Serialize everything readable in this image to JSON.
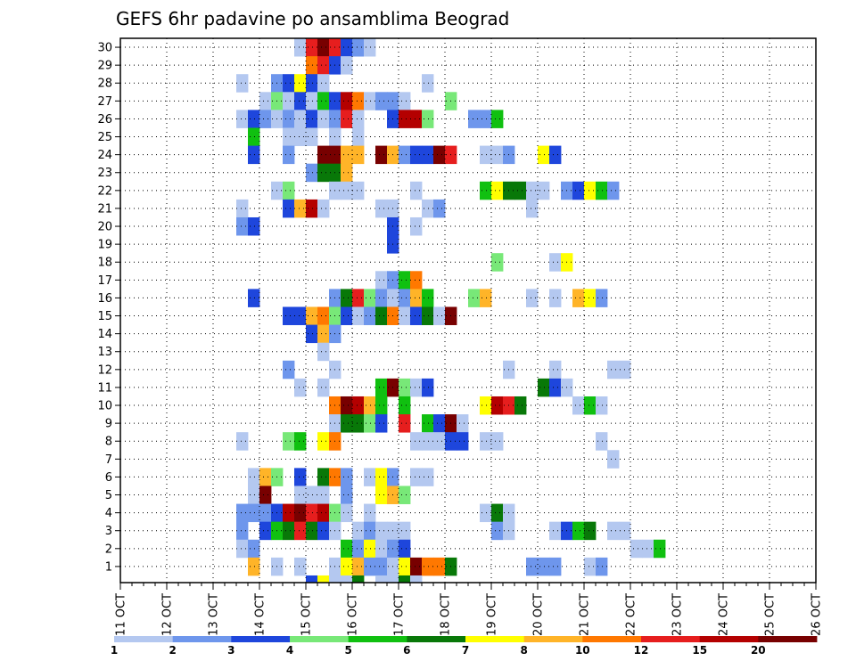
{
  "chart_data": {
    "type": "heatmap",
    "title": "GEFS 6hr padavine po ansamblima Beograd",
    "xlabel": "",
    "ylabel": "",
    "x_tick_labels": [
      "11 OCT",
      "12 OCT",
      "13 OCT",
      "14 OCT",
      "15 OCT",
      "16 OCT",
      "17 OCT",
      "18 OCT",
      "19 OCT",
      "20 OCT",
      "21 OCT",
      "22 OCT",
      "23 OCT",
      "24 OCT",
      "25 OCT",
      "26 OCT"
    ],
    "y_tick_labels": [
      "1",
      "2",
      "3",
      "4",
      "5",
      "6",
      "7",
      "8",
      "9",
      "10",
      "11",
      "12",
      "13",
      "14",
      "15",
      "16",
      "17",
      "18",
      "19",
      "20",
      "21",
      "22",
      "23",
      "24",
      "25",
      "26",
      "27",
      "28",
      "29",
      "30"
    ],
    "x_range_steps": [
      0,
      60
    ],
    "y_range": [
      0,
      30
    ],
    "grid": true,
    "legend_placement": "bottom",
    "legend_labels": [
      "1",
      "2",
      "3",
      "4",
      "5",
      "6",
      "7",
      "8",
      "10",
      "12",
      "15",
      "20"
    ],
    "legend_colors": [
      "#b4c8f0",
      "#6e96ec",
      "#1e46dc",
      "#78e878",
      "#10c010",
      "#087808",
      "#ffff00",
      "#ffb428",
      "#ff7800",
      "#e61e1e",
      "#b40000",
      "#780000"
    ],
    "cells": [
      [
        15,
        30,
        0
      ],
      [
        16,
        30,
        9
      ],
      [
        17,
        30,
        11
      ],
      [
        18,
        30,
        9
      ],
      [
        19,
        30,
        2
      ],
      [
        20,
        30,
        1
      ],
      [
        21,
        30,
        0
      ],
      [
        16,
        29,
        8
      ],
      [
        17,
        29,
        9
      ],
      [
        18,
        29,
        2
      ],
      [
        19,
        29,
        0
      ],
      [
        10,
        28,
        0
      ],
      [
        13,
        28,
        1
      ],
      [
        14,
        28,
        2
      ],
      [
        15,
        28,
        6
      ],
      [
        16,
        28,
        2
      ],
      [
        17,
        28,
        0
      ],
      [
        26,
        28,
        0
      ],
      [
        12,
        27,
        0
      ],
      [
        13,
        27,
        3
      ],
      [
        14,
        27,
        0
      ],
      [
        15,
        27,
        2
      ],
      [
        16,
        27,
        0
      ],
      [
        17,
        27,
        4
      ],
      [
        18,
        27,
        2
      ],
      [
        19,
        27,
        10
      ],
      [
        20,
        27,
        8
      ],
      [
        21,
        27,
        0
      ],
      [
        22,
        27,
        1
      ],
      [
        23,
        27,
        1
      ],
      [
        24,
        27,
        0
      ],
      [
        28,
        27,
        3
      ],
      [
        10,
        26,
        0
      ],
      [
        11,
        26,
        2
      ],
      [
        12,
        26,
        1
      ],
      [
        13,
        26,
        0
      ],
      [
        14,
        26,
        1
      ],
      [
        15,
        26,
        0
      ],
      [
        16,
        26,
        2
      ],
      [
        17,
        26,
        0
      ],
      [
        18,
        26,
        1
      ],
      [
        19,
        26,
        9
      ],
      [
        20,
        26,
        0
      ],
      [
        23,
        26,
        2
      ],
      [
        24,
        26,
        10
      ],
      [
        25,
        26,
        10
      ],
      [
        26,
        26,
        3
      ],
      [
        30,
        26,
        1
      ],
      [
        31,
        26,
        1
      ],
      [
        32,
        26,
        4
      ],
      [
        11,
        25,
        4
      ],
      [
        14,
        25,
        0
      ],
      [
        15,
        25,
        0
      ],
      [
        16,
        25,
        0
      ],
      [
        18,
        25,
        0
      ],
      [
        20,
        25,
        0
      ],
      [
        11,
        24,
        2
      ],
      [
        14,
        24,
        1
      ],
      [
        17,
        24,
        11
      ],
      [
        18,
        24,
        11
      ],
      [
        19,
        24,
        7
      ],
      [
        20,
        24,
        7
      ],
      [
        22,
        24,
        11
      ],
      [
        23,
        24,
        7
      ],
      [
        24,
        24,
        1
      ],
      [
        25,
        24,
        2
      ],
      [
        26,
        24,
        2
      ],
      [
        27,
        24,
        11
      ],
      [
        28,
        24,
        9
      ],
      [
        31,
        24,
        0
      ],
      [
        32,
        24,
        0
      ],
      [
        33,
        24,
        1
      ],
      [
        36,
        24,
        6
      ],
      [
        37,
        24,
        2
      ],
      [
        16,
        23,
        1
      ],
      [
        17,
        23,
        5
      ],
      [
        18,
        23,
        5
      ],
      [
        19,
        23,
        7
      ],
      [
        13,
        22,
        0
      ],
      [
        14,
        22,
        3
      ],
      [
        18,
        22,
        0
      ],
      [
        19,
        22,
        0
      ],
      [
        20,
        22,
        0
      ],
      [
        25,
        22,
        0
      ],
      [
        31,
        22,
        4
      ],
      [
        32,
        22,
        6
      ],
      [
        33,
        22,
        5
      ],
      [
        34,
        22,
        5
      ],
      [
        35,
        22,
        0
      ],
      [
        36,
        22,
        0
      ],
      [
        38,
        22,
        1
      ],
      [
        39,
        22,
        2
      ],
      [
        40,
        22,
        6
      ],
      [
        41,
        22,
        4
      ],
      [
        42,
        22,
        1
      ],
      [
        10,
        21,
        0
      ],
      [
        14,
        21,
        2
      ],
      [
        15,
        21,
        7
      ],
      [
        16,
        21,
        10
      ],
      [
        17,
        21,
        0
      ],
      [
        22,
        21,
        0
      ],
      [
        23,
        21,
        0
      ],
      [
        26,
        21,
        0
      ],
      [
        27,
        21,
        1
      ],
      [
        35,
        21,
        0
      ],
      [
        10,
        20,
        1
      ],
      [
        11,
        20,
        2
      ],
      [
        23,
        20,
        2
      ],
      [
        25,
        20,
        0
      ],
      [
        23,
        19,
        2
      ],
      [
        32,
        18,
        3
      ],
      [
        37,
        18,
        0
      ],
      [
        38,
        18,
        6
      ],
      [
        22,
        17,
        0
      ],
      [
        23,
        17,
        1
      ],
      [
        24,
        17,
        4
      ],
      [
        25,
        17,
        8
      ],
      [
        11,
        16,
        2
      ],
      [
        18,
        16,
        1
      ],
      [
        19,
        16,
        5
      ],
      [
        20,
        16,
        9
      ],
      [
        21,
        16,
        3
      ],
      [
        22,
        16,
        1
      ],
      [
        23,
        16,
        0
      ],
      [
        24,
        16,
        1
      ],
      [
        25,
        16,
        7
      ],
      [
        26,
        16,
        4
      ],
      [
        30,
        16,
        3
      ],
      [
        31,
        16,
        7
      ],
      [
        35,
        16,
        0
      ],
      [
        37,
        16,
        0
      ],
      [
        39,
        16,
        7
      ],
      [
        40,
        16,
        6
      ],
      [
        41,
        16,
        1
      ],
      [
        14,
        15,
        2
      ],
      [
        15,
        15,
        2
      ],
      [
        16,
        15,
        7
      ],
      [
        17,
        15,
        8
      ],
      [
        18,
        15,
        3
      ],
      [
        19,
        15,
        2
      ],
      [
        20,
        15,
        0
      ],
      [
        21,
        15,
        1
      ],
      [
        22,
        15,
        5
      ],
      [
        23,
        15,
        8
      ],
      [
        24,
        15,
        0
      ],
      [
        25,
        15,
        2
      ],
      [
        26,
        15,
        5
      ],
      [
        27,
        15,
        0
      ],
      [
        28,
        15,
        11
      ],
      [
        16,
        14,
        2
      ],
      [
        17,
        14,
        7
      ],
      [
        18,
        14,
        1
      ],
      [
        17,
        13,
        0
      ],
      [
        14,
        12,
        1
      ],
      [
        18,
        12,
        0
      ],
      [
        33,
        12,
        0
      ],
      [
        37,
        12,
        0
      ],
      [
        42,
        12,
        0
      ],
      [
        43,
        12,
        0
      ],
      [
        15,
        11,
        0
      ],
      [
        17,
        11,
        0
      ],
      [
        22,
        11,
        4
      ],
      [
        23,
        11,
        11
      ],
      [
        24,
        11,
        3
      ],
      [
        25,
        11,
        0
      ],
      [
        26,
        11,
        2
      ],
      [
        36,
        11,
        5
      ],
      [
        37,
        11,
        2
      ],
      [
        38,
        11,
        0
      ],
      [
        18,
        10,
        8
      ],
      [
        19,
        10,
        11
      ],
      [
        20,
        10,
        10
      ],
      [
        21,
        10,
        7
      ],
      [
        22,
        10,
        4
      ],
      [
        24,
        10,
        4
      ],
      [
        31,
        10,
        6
      ],
      [
        32,
        10,
        10
      ],
      [
        33,
        10,
        9
      ],
      [
        34,
        10,
        5
      ],
      [
        39,
        10,
        0
      ],
      [
        40,
        10,
        4
      ],
      [
        41,
        10,
        0
      ],
      [
        18,
        9,
        0
      ],
      [
        19,
        9,
        5
      ],
      [
        20,
        9,
        5
      ],
      [
        21,
        9,
        3
      ],
      [
        22,
        9,
        2
      ],
      [
        24,
        9,
        9
      ],
      [
        26,
        9,
        4
      ],
      [
        27,
        9,
        2
      ],
      [
        28,
        9,
        11
      ],
      [
        29,
        9,
        0
      ],
      [
        10,
        8,
        0
      ],
      [
        14,
        8,
        3
      ],
      [
        15,
        8,
        4
      ],
      [
        17,
        8,
        6
      ],
      [
        18,
        8,
        8
      ],
      [
        25,
        8,
        0
      ],
      [
        26,
        8,
        0
      ],
      [
        27,
        8,
        0
      ],
      [
        28,
        8,
        2
      ],
      [
        29,
        8,
        2
      ],
      [
        31,
        8,
        0
      ],
      [
        32,
        8,
        0
      ],
      [
        41,
        8,
        0
      ],
      [
        42,
        7,
        0
      ],
      [
        11,
        6,
        0
      ],
      [
        12,
        6,
        7
      ],
      [
        13,
        6,
        3
      ],
      [
        15,
        6,
        2
      ],
      [
        17,
        6,
        5
      ],
      [
        18,
        6,
        8
      ],
      [
        19,
        6,
        1
      ],
      [
        21,
        6,
        0
      ],
      [
        22,
        6,
        6
      ],
      [
        23,
        6,
        1
      ],
      [
        25,
        6,
        0
      ],
      [
        26,
        6,
        0
      ],
      [
        11,
        5,
        0
      ],
      [
        12,
        5,
        11
      ],
      [
        15,
        5,
        0
      ],
      [
        16,
        5,
        0
      ],
      [
        17,
        5,
        0
      ],
      [
        19,
        5,
        1
      ],
      [
        22,
        5,
        6
      ],
      [
        23,
        5,
        7
      ],
      [
        24,
        5,
        3
      ],
      [
        10,
        4,
        1
      ],
      [
        11,
        4,
        1
      ],
      [
        12,
        4,
        1
      ],
      [
        13,
        4,
        2
      ],
      [
        14,
        4,
        10
      ],
      [
        15,
        4,
        11
      ],
      [
        16,
        4,
        9
      ],
      [
        17,
        4,
        10
      ],
      [
        18,
        4,
        3
      ],
      [
        19,
        4,
        0
      ],
      [
        21,
        4,
        0
      ],
      [
        31,
        4,
        0
      ],
      [
        32,
        4,
        5
      ],
      [
        33,
        4,
        0
      ],
      [
        10,
        3,
        1
      ],
      [
        12,
        3,
        2
      ],
      [
        13,
        3,
        4
      ],
      [
        14,
        3,
        5
      ],
      [
        15,
        3,
        9
      ],
      [
        16,
        3,
        5
      ],
      [
        17,
        3,
        2
      ],
      [
        18,
        3,
        0
      ],
      [
        20,
        3,
        0
      ],
      [
        21,
        3,
        1
      ],
      [
        22,
        3,
        0
      ],
      [
        23,
        3,
        0
      ],
      [
        24,
        3,
        0
      ],
      [
        32,
        3,
        1
      ],
      [
        33,
        3,
        0
      ],
      [
        37,
        3,
        0
      ],
      [
        38,
        3,
        2
      ],
      [
        39,
        3,
        4
      ],
      [
        40,
        3,
        5
      ],
      [
        42,
        3,
        0
      ],
      [
        43,
        3,
        0
      ],
      [
        10,
        2,
        0
      ],
      [
        11,
        2,
        1
      ],
      [
        19,
        2,
        4
      ],
      [
        20,
        2,
        1
      ],
      [
        21,
        2,
        6
      ],
      [
        22,
        2,
        0
      ],
      [
        23,
        2,
        1
      ],
      [
        24,
        2,
        2
      ],
      [
        44,
        2,
        0
      ],
      [
        45,
        2,
        0
      ],
      [
        46,
        2,
        4
      ],
      [
        11,
        1,
        7
      ],
      [
        13,
        1,
        0
      ],
      [
        15,
        1,
        0
      ],
      [
        18,
        1,
        0
      ],
      [
        19,
        1,
        6
      ],
      [
        20,
        1,
        7
      ],
      [
        21,
        1,
        1
      ],
      [
        22,
        1,
        1
      ],
      [
        23,
        1,
        0
      ],
      [
        24,
        1,
        6
      ],
      [
        25,
        1,
        11
      ],
      [
        26,
        1,
        8
      ],
      [
        27,
        1,
        8
      ],
      [
        28,
        1,
        5
      ],
      [
        35,
        1,
        1
      ],
      [
        36,
        1,
        1
      ],
      [
        37,
        1,
        1
      ],
      [
        40,
        1,
        0
      ],
      [
        41,
        1,
        1
      ],
      [
        16,
        0,
        2
      ],
      [
        17,
        0,
        6
      ],
      [
        18,
        0,
        0
      ],
      [
        19,
        0,
        0
      ],
      [
        20,
        0,
        5
      ],
      [
        22,
        0,
        0
      ],
      [
        23,
        0,
        0
      ],
      [
        24,
        0,
        5
      ],
      [
        25,
        0,
        0
      ]
    ]
  }
}
